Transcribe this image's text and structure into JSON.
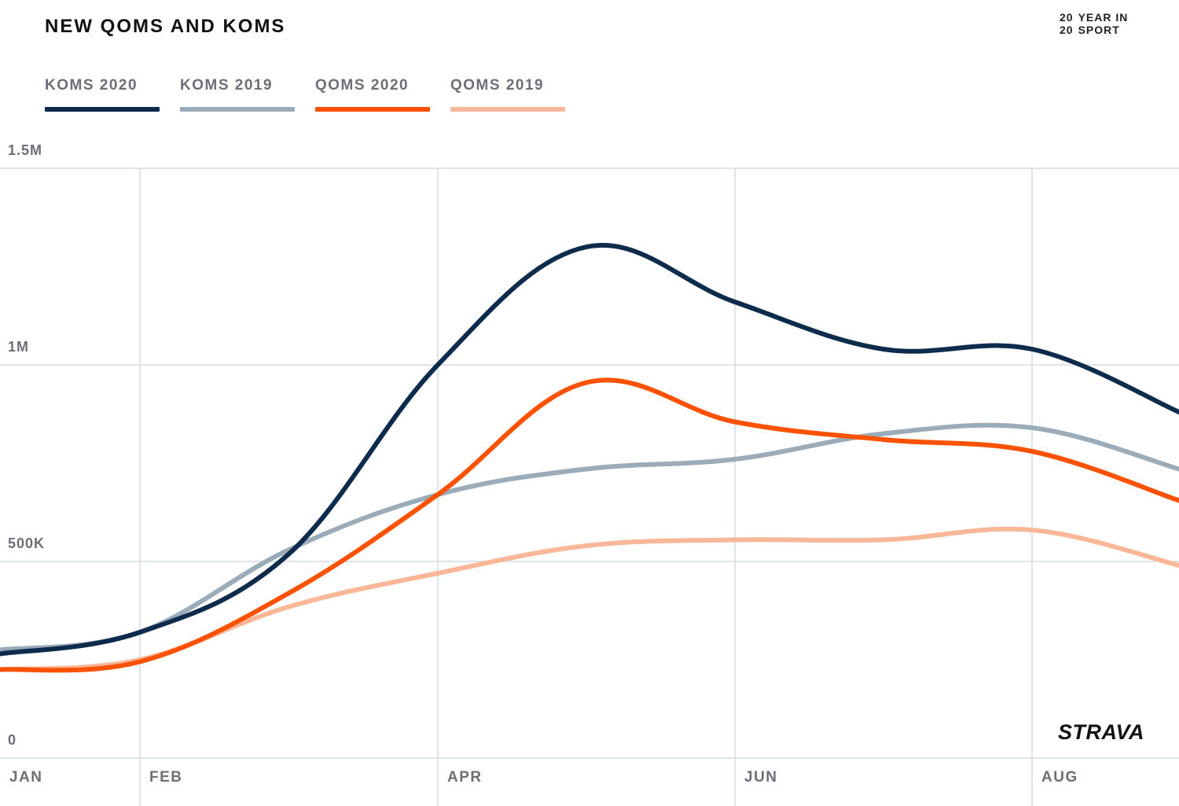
{
  "header": {
    "title": "NEW QOMS AND KOMS",
    "badge": {
      "line1_num": "20",
      "line1_text": "YEAR IN",
      "line2_num": "20",
      "line2_text": "SPORT"
    }
  },
  "brand": {
    "logo_text": "STRAVA"
  },
  "chart_data": {
    "type": "line",
    "title": "NEW QOMS AND KOMS",
    "xlabel": "",
    "ylabel": "",
    "x_ticks": [
      "JAN",
      "FEB",
      "APR",
      "JUN",
      "AUG"
    ],
    "y_ticks": [
      "0",
      "500K",
      "1M",
      "1.5M"
    ],
    "x": [
      "Jan 1",
      "Feb 1",
      "Mar 1",
      "Apr 1",
      "May 1",
      "Jun 1",
      "Jul 1",
      "Aug 1",
      "Sep 1"
    ],
    "ylim": [
      0,
      1500000
    ],
    "grid": true,
    "legend_position": "top-left",
    "series": [
      {
        "name": "KOMS 2020",
        "color": "#0d2c4d",
        "values": [
          265000,
          320000,
          520000,
          1000000,
          1300000,
          1160000,
          1040000,
          1040000,
          880000
        ]
      },
      {
        "name": "KOMS 2019",
        "color": "#9aabb9",
        "values": [
          275000,
          320000,
          530000,
          670000,
          735000,
          760000,
          825000,
          840000,
          735000
        ]
      },
      {
        "name": "QOMS 2020",
        "color": "#fc5200",
        "values": [
          225000,
          245000,
          420000,
          670000,
          955000,
          855000,
          810000,
          780000,
          655000
        ]
      },
      {
        "name": "QOMS 2019",
        "color": "#f9b797",
        "values": [
          225000,
          250000,
          385000,
          470000,
          540000,
          555000,
          555000,
          580000,
          490000
        ]
      }
    ]
  }
}
